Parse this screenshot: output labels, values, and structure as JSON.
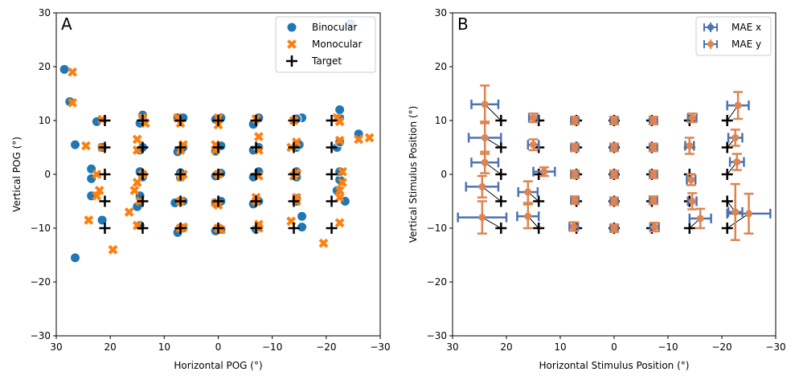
{
  "chart_data": [
    {
      "type": "scatter",
      "panel_label": "A",
      "xlabel": "Horizontal POG (°)",
      "ylabel": "Vertical POG (°)",
      "xlim": [
        30,
        -30
      ],
      "ylim": [
        30,
        -30
      ],
      "xticks": [
        30,
        20,
        10,
        0,
        -10,
        -20,
        -30
      ],
      "yticks": [
        -30,
        -20,
        -10,
        0,
        10,
        20,
        30
      ],
      "legend_position": "top-right",
      "series": [
        {
          "name": "Binocular",
          "marker": "circle",
          "color": "#1f77b4",
          "points": [
            [
              26.5,
              -15.5
            ],
            [
              21.5,
              -8.5
            ],
            [
              23.5,
              -4
            ],
            [
              23.5,
              -0.8
            ],
            [
              23.5,
              1
            ],
            [
              21.5,
              5
            ],
            [
              26.5,
              5.5
            ],
            [
              22.5,
              9.8
            ],
            [
              27.5,
              13.5
            ],
            [
              28.5,
              19.5
            ],
            [
              14.5,
              -9.5
            ],
            [
              15,
              -6
            ],
            [
              14.5,
              -4
            ],
            [
              14,
              -0.5
            ],
            [
              14.5,
              0.5
            ],
            [
              14.5,
              4.5
            ],
            [
              14,
              5
            ],
            [
              14.5,
              9.5
            ],
            [
              14,
              10.5
            ],
            [
              14,
              11
            ],
            [
              7.5,
              -10.8
            ],
            [
              6.5,
              -10
            ],
            [
              8,
              -5.3
            ],
            [
              6.5,
              -5
            ],
            [
              7,
              -0.5
            ],
            [
              7,
              0.3
            ],
            [
              7.5,
              4.2
            ],
            [
              6.5,
              5
            ],
            [
              7.5,
              10.5
            ],
            [
              6.5,
              10.5
            ],
            [
              0.5,
              -10.5
            ],
            [
              -0.5,
              -10.2
            ],
            [
              0.5,
              -5.3
            ],
            [
              -0.5,
              -5
            ],
            [
              0.5,
              -0.3
            ],
            [
              -0.5,
              0.2
            ],
            [
              0.5,
              4.3
            ],
            [
              -0.5,
              5.3
            ],
            [
              0.5,
              10.2
            ],
            [
              -0.5,
              10.5
            ],
            [
              -7,
              -10.2
            ],
            [
              -7.5,
              -9.8
            ],
            [
              -6.5,
              -5.5
            ],
            [
              -7.5,
              -5
            ],
            [
              -6.5,
              -0.5
            ],
            [
              -7.5,
              0.5
            ],
            [
              -6.5,
              4.5
            ],
            [
              -7.5,
              5
            ],
            [
              -6.5,
              9.3
            ],
            [
              -7.5,
              10.5
            ],
            [
              -15.5,
              -9.8
            ],
            [
              -15.5,
              -7.8
            ],
            [
              -14.5,
              -5
            ],
            [
              -14.5,
              -4.5
            ],
            [
              -14.5,
              -0.5
            ],
            [
              -14.5,
              0.5
            ],
            [
              -14.5,
              5
            ],
            [
              -15,
              5.5
            ],
            [
              -15.5,
              10.5
            ],
            [
              -14.5,
              10.3
            ],
            [
              -23.5,
              -5
            ],
            [
              -22,
              -3
            ],
            [
              -22.5,
              -1
            ],
            [
              -22.5,
              0.5
            ],
            [
              -22,
              5
            ],
            [
              -22.5,
              6
            ],
            [
              -26,
              7.5
            ],
            [
              -22.5,
              10.5
            ],
            [
              -22.5,
              12
            ],
            [
              -24.5,
              28
            ]
          ]
        },
        {
          "name": "Monocular",
          "marker": "x",
          "color": "#ff7f0e",
          "points": [
            [
              19.5,
              -14
            ],
            [
              24,
              -8.5
            ],
            [
              22.5,
              -4
            ],
            [
              22,
              -3
            ],
            [
              22.5,
              0
            ],
            [
              24.5,
              5.3
            ],
            [
              21.5,
              5
            ],
            [
              21.5,
              10.2
            ],
            [
              27,
              13.3
            ],
            [
              27,
              19
            ],
            [
              15,
              -9.5
            ],
            [
              16.5,
              -7
            ],
            [
              14.5,
              -5
            ],
            [
              15.5,
              -3
            ],
            [
              15,
              -1.5
            ],
            [
              14,
              0
            ],
            [
              15,
              4.5
            ],
            [
              15,
              6.5
            ],
            [
              13.5,
              9.5
            ],
            [
              14,
              10.5
            ],
            [
              7,
              -10
            ],
            [
              6.5,
              -9.8
            ],
            [
              7,
              -5
            ],
            [
              7,
              -0.5
            ],
            [
              6.5,
              0
            ],
            [
              7,
              4.5
            ],
            [
              6.5,
              5.5
            ],
            [
              7,
              9.5
            ],
            [
              7.5,
              10.5
            ],
            [
              -0.5,
              -10.3
            ],
            [
              0,
              -10
            ],
            [
              0,
              -5.7
            ],
            [
              0.5,
              -5.3
            ],
            [
              0,
              0
            ],
            [
              0.5,
              4.5
            ],
            [
              0.5,
              5.5
            ],
            [
              0,
              9.2
            ],
            [
              0,
              10.5
            ],
            [
              -7.5,
              -10
            ],
            [
              -7.5,
              -9.3
            ],
            [
              -7,
              -5
            ],
            [
              -7,
              -4.3
            ],
            [
              -7.5,
              -0.3
            ],
            [
              -7.5,
              4.5
            ],
            [
              -7.5,
              7
            ],
            [
              -7,
              10.3
            ],
            [
              -13.5,
              -8.7
            ],
            [
              -14.5,
              -5
            ],
            [
              -14.5,
              -4.3
            ],
            [
              -14,
              -0.3
            ],
            [
              -14.5,
              0.3
            ],
            [
              -13.5,
              5
            ],
            [
              -14.5,
              6
            ],
            [
              -14,
              10
            ],
            [
              -19.5,
              -12.8
            ],
            [
              -22.5,
              -9
            ],
            [
              -22.5,
              -4.3
            ],
            [
              -22.5,
              -3
            ],
            [
              -23,
              -1.5
            ],
            [
              -23,
              0.5
            ],
            [
              -22.5,
              6.3
            ],
            [
              -22.5,
              9.8
            ],
            [
              -22,
              10.5
            ],
            [
              -26,
              6.5
            ],
            [
              -28,
              6.8
            ]
          ]
        },
        {
          "name": "Target",
          "marker": "plus",
          "color": "#000000",
          "points": [
            [
              21,
              -10
            ],
            [
              14,
              -10
            ],
            [
              7,
              -10
            ],
            [
              0,
              -10
            ],
            [
              -7,
              -10
            ],
            [
              -14,
              -10
            ],
            [
              -21,
              -10
            ],
            [
              21,
              -5
            ],
            [
              14,
              -5
            ],
            [
              7,
              -5
            ],
            [
              0,
              -5
            ],
            [
              -7,
              -5
            ],
            [
              -14,
              -5
            ],
            [
              -21,
              -5
            ],
            [
              21,
              0
            ],
            [
              14,
              0
            ],
            [
              7,
              0
            ],
            [
              0,
              0
            ],
            [
              -7,
              0
            ],
            [
              -14,
              0
            ],
            [
              -21,
              0
            ],
            [
              21,
              5
            ],
            [
              14,
              5
            ],
            [
              7,
              5
            ],
            [
              0,
              5
            ],
            [
              -7,
              5
            ],
            [
              -14,
              5
            ],
            [
              -21,
              5
            ],
            [
              21,
              10
            ],
            [
              14,
              10
            ],
            [
              7,
              10
            ],
            [
              0,
              10
            ],
            [
              -7,
              10
            ],
            [
              -14,
              10
            ],
            [
              -21,
              10
            ]
          ]
        }
      ]
    },
    {
      "type": "errorbar",
      "panel_label": "B",
      "xlabel": "Horizontal Stimulus Position (°)",
      "ylabel": "Vertical Stimulus Position (°)",
      "xlim": [
        30,
        -30
      ],
      "ylim": [
        30,
        -30
      ],
      "xticks": [
        30,
        20,
        10,
        0,
        -10,
        -20,
        -30
      ],
      "yticks": [
        -30,
        -20,
        -10,
        0,
        10,
        20,
        30
      ],
      "legend_position": "top-right",
      "series": [
        {
          "name": "MAE x",
          "color": "#4c72b0"
        },
        {
          "name": "MAE y",
          "color": "#dd8452"
        }
      ],
      "points": [
        {
          "target": [
            21,
            -10
          ],
          "x": 24.5,
          "y": -8,
          "ex": 4.5,
          "ey": 3
        },
        {
          "target": [
            21,
            -5
          ],
          "x": 24.5,
          "y": -2.3,
          "ex": 3,
          "ey": 2
        },
        {
          "target": [
            21,
            0
          ],
          "x": 24,
          "y": 2.2,
          "ex": 2.5,
          "ey": 2
        },
        {
          "target": [
            21,
            5
          ],
          "x": 24,
          "y": 6.8,
          "ex": 3,
          "ey": 3
        },
        {
          "target": [
            21,
            10
          ],
          "x": 24,
          "y": 13,
          "ex": 2.5,
          "ey": 3.5
        },
        {
          "target": [
            14,
            -10
          ],
          "x": 16,
          "y": -7.8,
          "ex": 2,
          "ey": 2.2
        },
        {
          "target": [
            14,
            -5
          ],
          "x": 16,
          "y": -3.3,
          "ex": 1.8,
          "ey": 2
        },
        {
          "target": [
            14,
            0
          ],
          "x": 13,
          "y": 0.5,
          "ex": 2,
          "ey": 0.8
        },
        {
          "target": [
            14,
            5
          ],
          "x": 15,
          "y": 5.5,
          "ex": 1,
          "ey": 1
        },
        {
          "target": [
            14,
            10
          ],
          "x": 15,
          "y": 10.5,
          "ex": 0.8,
          "ey": 0.8
        },
        {
          "target": [
            7,
            -10
          ],
          "x": 7.5,
          "y": -9.7,
          "ex": 0.8,
          "ey": 0.8
        },
        {
          "target": [
            7,
            -5
          ],
          "x": 7.3,
          "y": -4.8,
          "ex": 0.7,
          "ey": 0.7
        },
        {
          "target": [
            7,
            0
          ],
          "x": 7.3,
          "y": 0,
          "ex": 0.7,
          "ey": 0.7
        },
        {
          "target": [
            7,
            5
          ],
          "x": 7.3,
          "y": 5,
          "ex": 0.7,
          "ey": 0.7
        },
        {
          "target": [
            7,
            10
          ],
          "x": 7.3,
          "y": 10,
          "ex": 0.7,
          "ey": 0.7
        },
        {
          "target": [
            0,
            -10
          ],
          "x": 0,
          "y": -10,
          "ex": 0.7,
          "ey": 0.7
        },
        {
          "target": [
            0,
            -5
          ],
          "x": 0,
          "y": -5,
          "ex": 0.7,
          "ey": 0.7
        },
        {
          "target": [
            0,
            0
          ],
          "x": 0,
          "y": 0,
          "ex": 0.7,
          "ey": 0.7
        },
        {
          "target": [
            0,
            5
          ],
          "x": 0,
          "y": 5,
          "ex": 0.7,
          "ey": 0.7
        },
        {
          "target": [
            0,
            10
          ],
          "x": 0,
          "y": 10,
          "ex": 0.7,
          "ey": 0.7
        },
        {
          "target": [
            -7,
            -10
          ],
          "x": -7.5,
          "y": -9.8,
          "ex": 0.8,
          "ey": 0.8
        },
        {
          "target": [
            -7,
            -5
          ],
          "x": -7.3,
          "y": -4.8,
          "ex": 0.7,
          "ey": 0.7
        },
        {
          "target": [
            -7,
            0
          ],
          "x": -7.3,
          "y": 0,
          "ex": 0.7,
          "ey": 0.7
        },
        {
          "target": [
            -7,
            5
          ],
          "x": -7.3,
          "y": 5,
          "ex": 0.7,
          "ey": 0.7
        },
        {
          "target": [
            -7,
            10
          ],
          "x": -7.3,
          "y": 10,
          "ex": 0.7,
          "ey": 0.7
        },
        {
          "target": [
            -14,
            -10
          ],
          "x": -16,
          "y": -8.2,
          "ex": 2,
          "ey": 1.8
        },
        {
          "target": [
            -14,
            -5
          ],
          "x": -14.5,
          "y": -5,
          "ex": 0.8,
          "ey": 1.5
        },
        {
          "target": [
            -14,
            0
          ],
          "x": -14.3,
          "y": -1,
          "ex": 0.8,
          "ey": 1
        },
        {
          "target": [
            -14,
            5
          ],
          "x": -14,
          "y": 5.3,
          "ex": 0.8,
          "ey": 1.5
        },
        {
          "target": [
            -14,
            10
          ],
          "x": -14.5,
          "y": 10.5,
          "ex": 0.8,
          "ey": 0.8
        },
        {
          "target": [
            -21,
            -10
          ],
          "x": -25,
          "y": -7.3,
          "ex": 4,
          "ey": 3.7
        },
        {
          "target": [
            -21,
            -5
          ],
          "x": -22.5,
          "y": -7,
          "ex": 1.3,
          "ey": 5.2
        },
        {
          "target": [
            -21,
            0
          ],
          "x": -22.8,
          "y": 2.3,
          "ex": 1.3,
          "ey": 1.5
        },
        {
          "target": [
            -21,
            5
          ],
          "x": -22.5,
          "y": 6.8,
          "ex": 1.3,
          "ey": 1.5
        },
        {
          "target": [
            -21,
            10
          ],
          "x": -23,
          "y": 12.8,
          "ex": 2,
          "ey": 2.5
        }
      ]
    }
  ]
}
